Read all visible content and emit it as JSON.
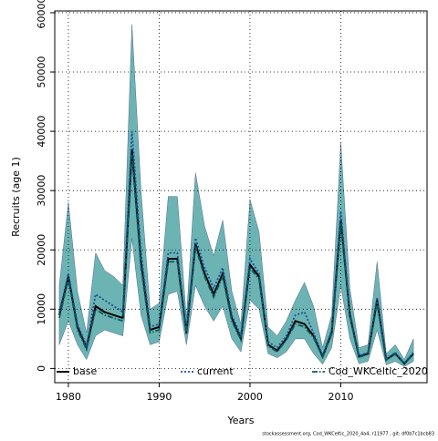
{
  "chart_data": {
    "type": "line",
    "xlabel": "Years",
    "ylabel": "Recruits (age 1)",
    "footer": "stockassessment.org, Cod_WKCeltic_2020_4a4, r11977 , git: df0b7c1bcb83",
    "x": [
      1979,
      1980,
      1981,
      1982,
      1983,
      1984,
      1985,
      1986,
      1987,
      1988,
      1989,
      1990,
      1991,
      1992,
      1993,
      1994,
      1995,
      1996,
      1997,
      1998,
      1999,
      2000,
      2001,
      2002,
      2003,
      2004,
      2005,
      2006,
      2007,
      2008,
      2009,
      2010,
      2011,
      2012,
      2013,
      2014,
      2015,
      2016,
      2017,
      2018
    ],
    "xlim": [
      1978.5,
      2019.5
    ],
    "xticks": [
      1980,
      1990,
      2000,
      2010
    ],
    "ylim": [
      -2400,
      60300
    ],
    "yticks": [
      0,
      10000,
      20000,
      30000,
      40000,
      50000,
      60000
    ],
    "grid": true,
    "legend": "bottom",
    "band": {
      "color": "#2e9494",
      "upper": [
        14000,
        28000,
        13000,
        6000,
        19500,
        16500,
        15500,
        14000,
        58000,
        30000,
        10000,
        11000,
        29000,
        29000,
        8500,
        33000,
        24000,
        19000,
        25000,
        13000,
        7500,
        28500,
        23000,
        7000,
        5500,
        8000,
        11500,
        14500,
        10500,
        3500,
        9000,
        38000,
        13500,
        3500,
        4000,
        18000,
        2500,
        4000,
        1500,
        5000
      ],
      "lower": [
        4000,
        8000,
        4000,
        1500,
        5500,
        6500,
        6000,
        5500,
        22000,
        9000,
        4000,
        4500,
        12500,
        13000,
        4000,
        14000,
        10500,
        8000,
        10500,
        5000,
        2800,
        11500,
        10000,
        2500,
        1800,
        2800,
        5000,
        5000,
        2500,
        700,
        3500,
        14000,
        5000,
        800,
        1200,
        6500,
        600,
        1200,
        300,
        1200
      ]
    },
    "series": [
      {
        "name": "base",
        "color": "#000000",
        "values": [
          9000,
          15500,
          7000,
          3500,
          10500,
          9500,
          9000,
          8500,
          37000,
          18000,
          6500,
          7000,
          18500,
          18500,
          6000,
          21000,
          16000,
          12500,
          16000,
          8500,
          5000,
          17500,
          15500,
          4000,
          3000,
          5000,
          8000,
          7500,
          5500,
          2000,
          6000,
          25000,
          9000,
          2000,
          2500,
          11500,
          1500,
          2500,
          800,
          2500
        ]
      },
      {
        "name": "current",
        "color": "#1f4e9a",
        "values": [
          9500,
          16000,
          7500,
          3800,
          12500,
          11500,
          10500,
          9500,
          40000,
          19500,
          7000,
          7500,
          19500,
          19500,
          6500,
          22000,
          17000,
          13500,
          17000,
          9000,
          5500,
          18500,
          16000,
          4500,
          3500,
          5500,
          9000,
          9500,
          6000,
          2200,
          6500,
          26500,
          9500,
          2200,
          2700,
          12000,
          1600,
          2700,
          900,
          2700
        ]
      },
      {
        "name": "Cod_WKCeltic_2020",
        "color": "#0d5c5c",
        "values": [
          8500,
          15000,
          6500,
          3200,
          10000,
          9000,
          8500,
          8000,
          36000,
          17000,
          6000,
          6500,
          18000,
          18000,
          5800,
          20500,
          15500,
          12000,
          15500,
          8000,
          4800,
          17000,
          15000,
          3800,
          2800,
          4800,
          7500,
          7000,
          5200,
          1900,
          5800,
          24500,
          8700,
          1900,
          2400,
          11000,
          1400,
          2400,
          750,
          2400
        ]
      }
    ]
  }
}
